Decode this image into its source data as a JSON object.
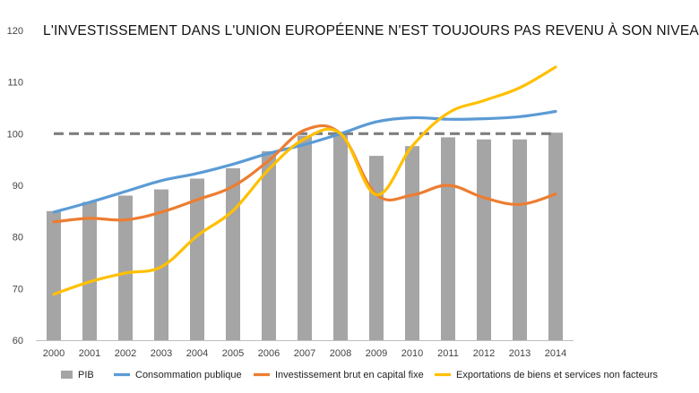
{
  "chart_data": {
    "type": "bar",
    "title": "L'INVESTISSEMENT DANS L'UNION EUROPÉENNE N'EST TOUJOURS PAS REVENU À SON NIVEAU D'AVANT LA CRISE",
    "xlabel": "",
    "ylabel": "",
    "ylim": [
      60,
      120
    ],
    "yticks": [
      "60",
      "70",
      "80",
      "90",
      "100",
      "110",
      "120"
    ],
    "categories": [
      "2000",
      "2001",
      "2002",
      "2003",
      "2004",
      "2005",
      "2006",
      "2007",
      "2008",
      "2009",
      "2010",
      "2011",
      "2012",
      "2013",
      "2014"
    ],
    "reference_line": {
      "value": 100,
      "color": "#7f7f7f",
      "style": "dashed"
    },
    "grid": false,
    "legend_position": "bottom",
    "series": [
      {
        "name": "PIB",
        "type": "bar",
        "color": "#a5a5a5",
        "values": [
          85,
          86.8,
          88,
          89.2,
          91.3,
          93.3,
          96.6,
          99.6,
          100,
          95.7,
          97.6,
          99.3,
          98.9,
          98.9,
          100.2
        ]
      },
      {
        "name": "Consommation publique",
        "type": "line",
        "color": "#5b9bd5",
        "values": [
          84.8,
          86.7,
          88.8,
          90.9,
          92.3,
          94.1,
          96.2,
          97.9,
          100,
          102.3,
          103.1,
          102.8,
          102.9,
          103.3,
          104.3
        ]
      },
      {
        "name": "Investissement brut en capital fixe",
        "type": "line",
        "color": "#ed7d31",
        "values": [
          82.9,
          83.6,
          83.3,
          84.8,
          87.2,
          89.8,
          94.8,
          100.7,
          100,
          88.2,
          88.1,
          90,
          87.6,
          86.3,
          88.3
        ]
      },
      {
        "name": "Exportations de biens et services non facteurs",
        "type": "line",
        "color": "#ffc000",
        "values": [
          68.9,
          71.3,
          73,
          74.2,
          80.2,
          85.1,
          93.1,
          99,
          100,
          88.2,
          97.6,
          104,
          106.4,
          108.9,
          112.9
        ]
      }
    ]
  }
}
